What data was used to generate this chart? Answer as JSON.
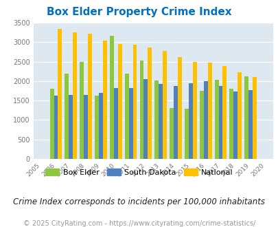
{
  "title": "Box Elder Property Crime Index",
  "years": [
    2005,
    2006,
    2007,
    2008,
    2009,
    2010,
    2011,
    2012,
    2013,
    2014,
    2015,
    2016,
    2017,
    2018,
    2019,
    2020
  ],
  "box_elder": [
    null,
    1800,
    2200,
    2500,
    1620,
    3160,
    2200,
    2530,
    2010,
    1310,
    1290,
    1750,
    2030,
    1810,
    2130,
    null
  ],
  "south_dakota": [
    null,
    1620,
    1640,
    1640,
    1700,
    1820,
    1820,
    2050,
    1930,
    1870,
    1940,
    2000,
    1870,
    1730,
    1770,
    null
  ],
  "national": [
    null,
    3340,
    3260,
    3210,
    3040,
    2960,
    2930,
    2860,
    2770,
    2620,
    2500,
    2470,
    2380,
    2220,
    2110,
    null
  ],
  "bar_colors": {
    "box_elder": "#8dc63f",
    "south_dakota": "#4f81bd",
    "national": "#ffc000"
  },
  "ylim": [
    0,
    3500
  ],
  "yticks": [
    0,
    500,
    1000,
    1500,
    2000,
    2500,
    3000,
    3500
  ],
  "plot_bg": "#dde8f0",
  "title_color": "#0070c0",
  "subtitle": "Crime Index corresponds to incidents per 100,000 inhabitants",
  "footer": "© 2025 CityRating.com - https://www.cityrating.com/crime-statistics/",
  "legend_labels": [
    "Box Elder",
    "South Dakota",
    "National"
  ],
  "title_fontsize": 11,
  "subtitle_fontsize": 8.5,
  "footer_fontsize": 7
}
